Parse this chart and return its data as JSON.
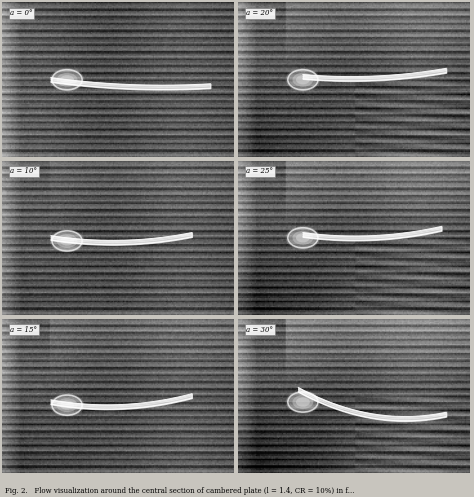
{
  "figure_bg": "#c8c5be",
  "caption_text": "Fig. 2.   Flow visualization around the central section of cambered plate (l = 1.4, CR = 10%) in f...",
  "label_fontsize": 5.0,
  "caption_fontsize": 5.0,
  "panels": [
    {
      "label": "a = 0°",
      "row": 0,
      "col": 0,
      "alpha_deg": 0
    },
    {
      "label": "a = 20°",
      "row": 0,
      "col": 1,
      "alpha_deg": 20
    },
    {
      "label": "a = 10°",
      "row": 1,
      "col": 0,
      "alpha_deg": 10
    },
    {
      "label": "a = 25°",
      "row": 1,
      "col": 1,
      "alpha_deg": 25
    },
    {
      "label": "a = 15°",
      "row": 2,
      "col": 0,
      "alpha_deg": 15
    },
    {
      "label": "a = 30°",
      "row": 2,
      "col": 1,
      "alpha_deg": 30
    }
  ]
}
